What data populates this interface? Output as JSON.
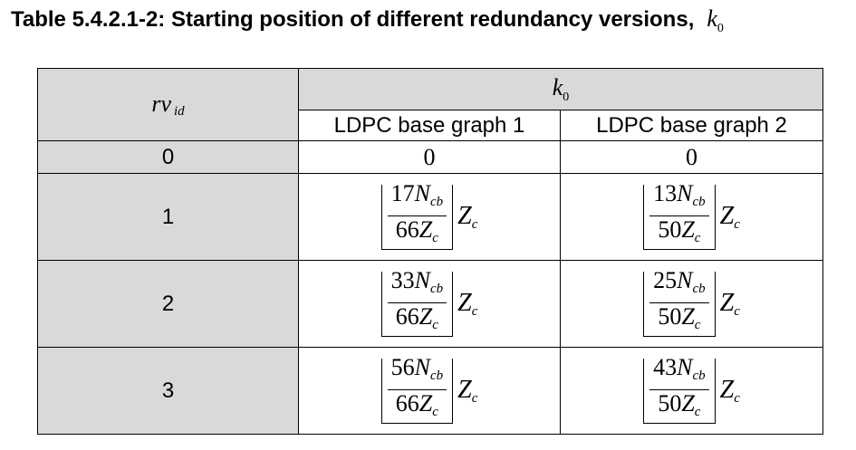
{
  "caption": {
    "text": "Table 5.4.2.1-2: Starting position of different redundancy versions,",
    "symbol": "k",
    "symbol_sub": "0"
  },
  "table": {
    "rv_header": "rv",
    "rv_header_sub": "id",
    "k0_header": "k",
    "k0_header_sub": "0",
    "bg_headers": [
      "LDPC base graph 1",
      "LDPC base graph 2"
    ],
    "rows": [
      {
        "rv": "0",
        "bg1": "0",
        "bg2": "0"
      },
      {
        "rv": "1",
        "bg1": {
          "num": "17",
          "den": "66"
        },
        "bg2": {
          "num": "13",
          "den": "50"
        }
      },
      {
        "rv": "2",
        "bg1": {
          "num": "33",
          "den": "66"
        },
        "bg2": {
          "num": "25",
          "den": "50"
        }
      },
      {
        "rv": "3",
        "bg1": {
          "num": "56",
          "den": "66"
        },
        "bg2": {
          "num": "43",
          "den": "50"
        }
      }
    ],
    "formula": {
      "N": "N",
      "N_sub": "cb",
      "Z": "Z",
      "Z_sub": "c"
    }
  }
}
